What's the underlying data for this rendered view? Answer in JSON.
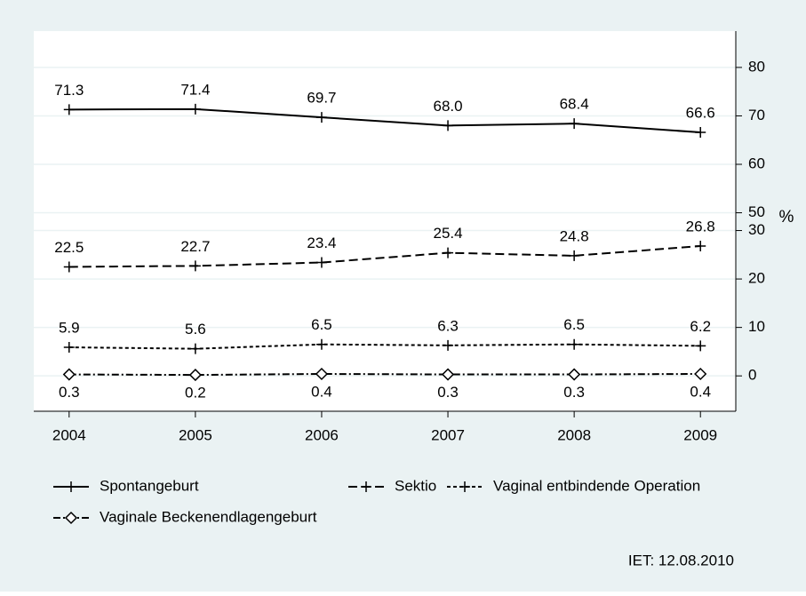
{
  "chart_data": {
    "type": "line",
    "x": [
      2004,
      2005,
      2006,
      2007,
      2008,
      2009
    ],
    "xlim": [
      2003.72,
      2009.28
    ],
    "xticks": [
      2004,
      2005,
      2006,
      2007,
      2008,
      2009
    ],
    "ylim": [
      -7.3,
      87.5
    ],
    "yticks": [
      0,
      10,
      20,
      30,
      50,
      60,
      70,
      80
    ],
    "axis_break": [
      30,
      50
    ],
    "y_label": "%",
    "y_axis_side": "right",
    "grid": true,
    "series": [
      {
        "name": "Spontangeburt",
        "color": "#000000",
        "dash": "none",
        "marker": "plus",
        "label_position": "above",
        "values": [
          71.3,
          71.4,
          69.7,
          68.0,
          68.4,
          66.6
        ],
        "value_labels": [
          "71.3",
          "71.4",
          "69.7",
          "68.0",
          "68.4",
          "66.6"
        ]
      },
      {
        "name": "Sektio",
        "color": "#000000",
        "dash": "10,5",
        "marker": "plus",
        "label_position": "above",
        "values": [
          22.5,
          22.7,
          23.4,
          25.4,
          24.8,
          26.8
        ]
      },
      {
        "name": "Vaginal entbindende Operation",
        "color": "#000000",
        "dash": "4,3",
        "marker": "plus",
        "label_position": "above",
        "values": [
          5.9,
          5.6,
          6.5,
          6.3,
          6.5,
          6.2
        ]
      },
      {
        "name": "Vaginale Beckenendlagengeburt",
        "color": "#000000",
        "dash": "8,3,2,3",
        "marker": "diamond",
        "label_position": "below",
        "values": [
          0.3,
          0.2,
          0.4,
          0.3,
          0.3,
          0.4
        ]
      }
    ],
    "note": "IET: 12.08.2010"
  }
}
